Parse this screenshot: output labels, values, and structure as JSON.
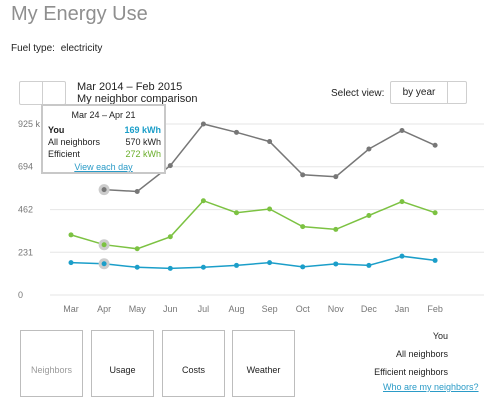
{
  "page": {
    "title": "My Energy Use",
    "fuel_label": "Fuel type:",
    "fuel_value": "electricity"
  },
  "header": {
    "period": "Mar 2014 – Feb 2015",
    "comparison": "My neighbor comparison",
    "select_label": "Select view:",
    "select_value": "by year"
  },
  "tooltip": {
    "date": "Mar 24 – Apr 21",
    "rows": [
      {
        "label": "You",
        "value": "169 kWh"
      },
      {
        "label": "All neighbors",
        "value": "570 kWh"
      },
      {
        "label": "Efficient",
        "value": "272 kWh"
      }
    ],
    "link": "View each day",
    "colors": {
      "you": "#1b9ec9",
      "efficient": "#6aae2a"
    }
  },
  "tiles": [
    "Neighbors",
    "Usage",
    "Costs",
    "Weather"
  ],
  "legend": {
    "items": [
      "You",
      "All neighbors",
      "Efficient neighbors"
    ],
    "link": "Who are my neighbors?"
  },
  "chart_data": {
    "type": "line",
    "categories": [
      "Mar",
      "Apr",
      "May",
      "Jun",
      "Jul",
      "Aug",
      "Sep",
      "Oct",
      "Nov",
      "Dec",
      "Jan",
      "Feb"
    ],
    "y_ticks": [
      "0",
      "231",
      "462",
      "694",
      "925 k"
    ],
    "ylim": [
      0,
      925
    ],
    "grid": true,
    "highlight_index": 1,
    "series": [
      {
        "name": "All neighbors",
        "color": "#777777",
        "values": [
          null,
          570,
          560,
          700,
          925,
          880,
          830,
          650,
          640,
          790,
          890,
          810
        ]
      },
      {
        "name": "Efficient neighbors",
        "color": "#7cc242",
        "values": [
          325,
          272,
          250,
          315,
          510,
          445,
          465,
          370,
          355,
          430,
          505,
          445
        ]
      },
      {
        "name": "You",
        "color": "#1b9ec9",
        "values": [
          175,
          169,
          150,
          144,
          150,
          160,
          175,
          152,
          168,
          160,
          210,
          187
        ]
      }
    ]
  }
}
